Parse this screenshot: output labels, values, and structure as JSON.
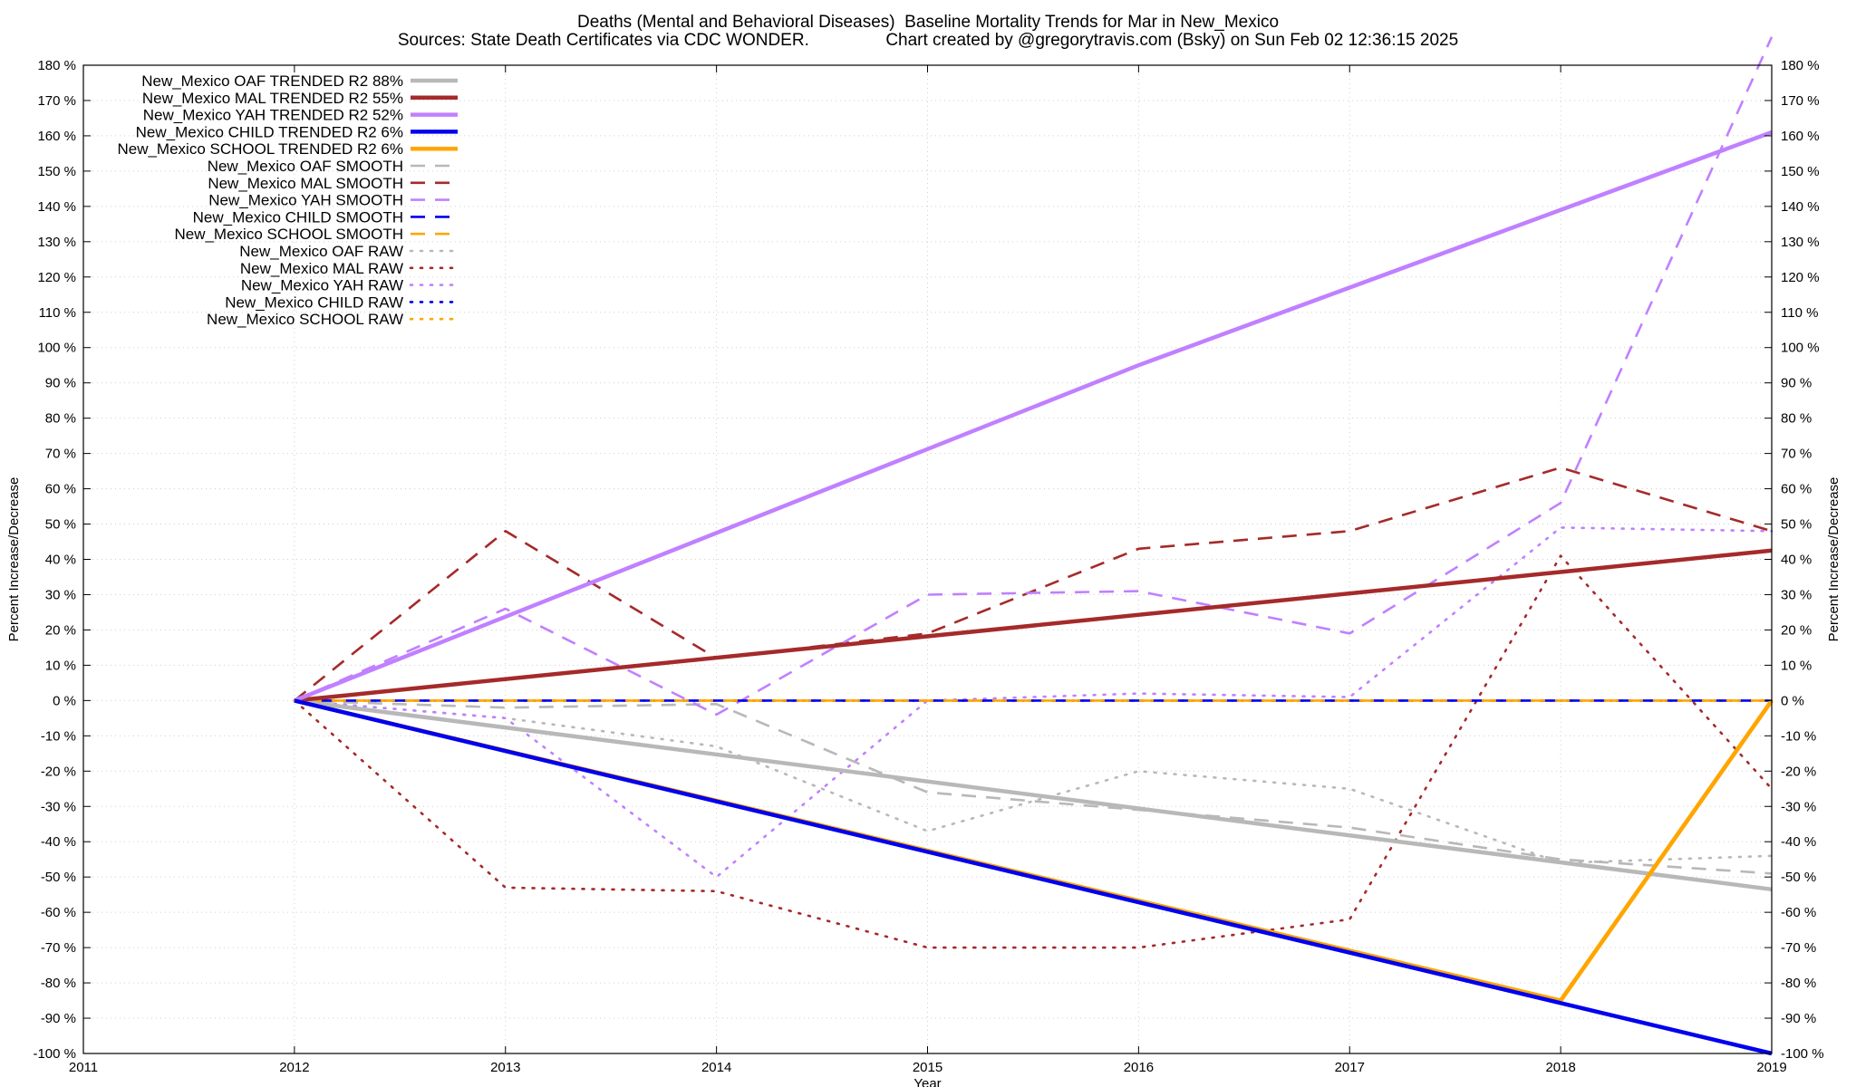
{
  "chart_data": {
    "type": "line",
    "title": "Deaths (Mental and Behavioral Diseases)  Baseline Mortality Trends for Mar in New_Mexico",
    "subtitle": "Sources: State Death Certificates via CDC WONDER.                Chart created by @gregorytravis.com (Bsky) on Sun Feb 02 12:36:15 2025",
    "xlabel": "Year",
    "ylabel": "Percent Increase/Decrease",
    "y2label": "Percent Increase/Decrease",
    "xlim": [
      2011,
      2019
    ],
    "ylim": [
      -100,
      180
    ],
    "x_ticks": [
      "2011",
      "2012",
      "2013",
      "2014",
      "2015",
      "2016",
      "2017",
      "2018",
      "2019"
    ],
    "y_ticks_left": [
      "180 %",
      "170 %",
      "160 %",
      "150 %",
      "140 %",
      "130 %",
      "120 %",
      "110 %",
      "100 %",
      "90 %",
      "80 %",
      "70 %",
      "60 %",
      "50 %",
      "40 %",
      "30 %",
      "20 %",
      "10 %",
      "0 %",
      "-10 %",
      "-20 %",
      "-30 %",
      "-40 %",
      "-50 %",
      "-60 %",
      "-70 %",
      "-80 %",
      "-90 %",
      "-100 %"
    ],
    "y_ticks_right": [
      "180 %",
      "170 %",
      "160 %",
      "150 %",
      "140 %",
      "130 %",
      "120 %",
      "110 %",
      "100 %",
      "90 %",
      "80 %",
      "70 %",
      "60 %",
      "50 %",
      "40 %",
      "30 %",
      "20 %",
      "10 %",
      "0 %",
      "-10 %",
      "-20 %",
      "-30 %",
      "-40 %",
      "-50 %",
      "-60 %",
      "-70 %",
      "-80 %",
      "-90 %",
      "-100 %"
    ],
    "grid": true,
    "legend_position": "top-left",
    "series": [
      {
        "name": "New_Mexico OAF TRENDED R2  88%",
        "color": "#b8b8b8",
        "style": "solid",
        "x": [
          2012,
          2019
        ],
        "y": [
          0,
          -53.5
        ]
      },
      {
        "name": "New_Mexico MAL TRENDED R2  55%",
        "color": "#a52a2a",
        "style": "solid",
        "x": [
          2012,
          2019
        ],
        "y": [
          0,
          42.5
        ]
      },
      {
        "name": "New_Mexico YAH TRENDED R2  52%",
        "color": "#c080ff",
        "style": "solid",
        "x": [
          2012,
          2016,
          2019
        ],
        "y": [
          0,
          95,
          161
        ]
      },
      {
        "name": "New_Mexico CHILD TRENDED R2   6%",
        "color": "#0000ee",
        "style": "solid",
        "x": [
          2012,
          2019
        ],
        "y": [
          0,
          -100
        ]
      },
      {
        "name": "New_Mexico SCHOOL TRENDED R2   6%",
        "color": "#ffa500",
        "style": "solid",
        "x": [
          2012,
          2018,
          2019
        ],
        "y": [
          0,
          -85,
          0
        ]
      },
      {
        "name": "New_Mexico OAF SMOOTH",
        "color": "#b8b8b8",
        "style": "dash",
        "x": [
          2012,
          2013,
          2014,
          2015,
          2016,
          2017,
          2018,
          2019
        ],
        "y": [
          0,
          -2,
          -1,
          -26,
          -31,
          -36,
          -45,
          -49
        ]
      },
      {
        "name": "New_Mexico MAL SMOOTH",
        "color": "#a52a2a",
        "style": "dash",
        "x": [
          2012,
          2013,
          2014,
          2015,
          2016,
          2017,
          2018,
          2019
        ],
        "y": [
          0,
          48,
          12,
          19,
          43,
          48,
          66,
          48
        ]
      },
      {
        "name": "New_Mexico YAH SMOOTH",
        "color": "#c080ff",
        "style": "dash",
        "x": [
          2012,
          2013,
          2014,
          2015,
          2016,
          2017,
          2018,
          2019
        ],
        "y": [
          0,
          26,
          -4,
          30,
          31,
          19,
          56,
          188
        ]
      },
      {
        "name": "New_Mexico CHILD SMOOTH",
        "color": "#0000ee",
        "style": "dash",
        "x": [
          2012,
          2019
        ],
        "y": [
          0,
          0
        ]
      },
      {
        "name": "New_Mexico SCHOOL SMOOTH",
        "color": "#ffa500",
        "style": "dash",
        "x": [
          2012,
          2019
        ],
        "y": [
          0,
          0
        ]
      },
      {
        "name": "New_Mexico OAF RAW",
        "color": "#b8b8b8",
        "style": "dot",
        "x": [
          2012,
          2013,
          2014,
          2015,
          2016,
          2017,
          2018,
          2019
        ],
        "y": [
          0,
          -5,
          -13,
          -37,
          -20,
          -25,
          -46,
          -44
        ]
      },
      {
        "name": "New_Mexico MAL RAW",
        "color": "#a52a2a",
        "style": "dot",
        "x": [
          2012,
          2013,
          2014,
          2015,
          2016,
          2017,
          2018,
          2019
        ],
        "y": [
          0,
          -53,
          -54,
          -70,
          -70,
          -62,
          41,
          -25
        ]
      },
      {
        "name": "New_Mexico YAH RAW",
        "color": "#c080ff",
        "style": "dot",
        "x": [
          2012,
          2013,
          2014,
          2015,
          2016,
          2017,
          2018,
          2019
        ],
        "y": [
          0,
          -5,
          -50,
          0,
          2,
          1,
          49,
          48
        ]
      },
      {
        "name": "New_Mexico CHILD RAW",
        "color": "#0000ee",
        "style": "dot",
        "x": [
          2012,
          2019
        ],
        "y": [
          0,
          0
        ]
      },
      {
        "name": "New_Mexico SCHOOL RAW",
        "color": "#ffa500",
        "style": "dot",
        "x": [
          2012,
          2019
        ],
        "y": [
          0,
          0
        ]
      }
    ]
  }
}
